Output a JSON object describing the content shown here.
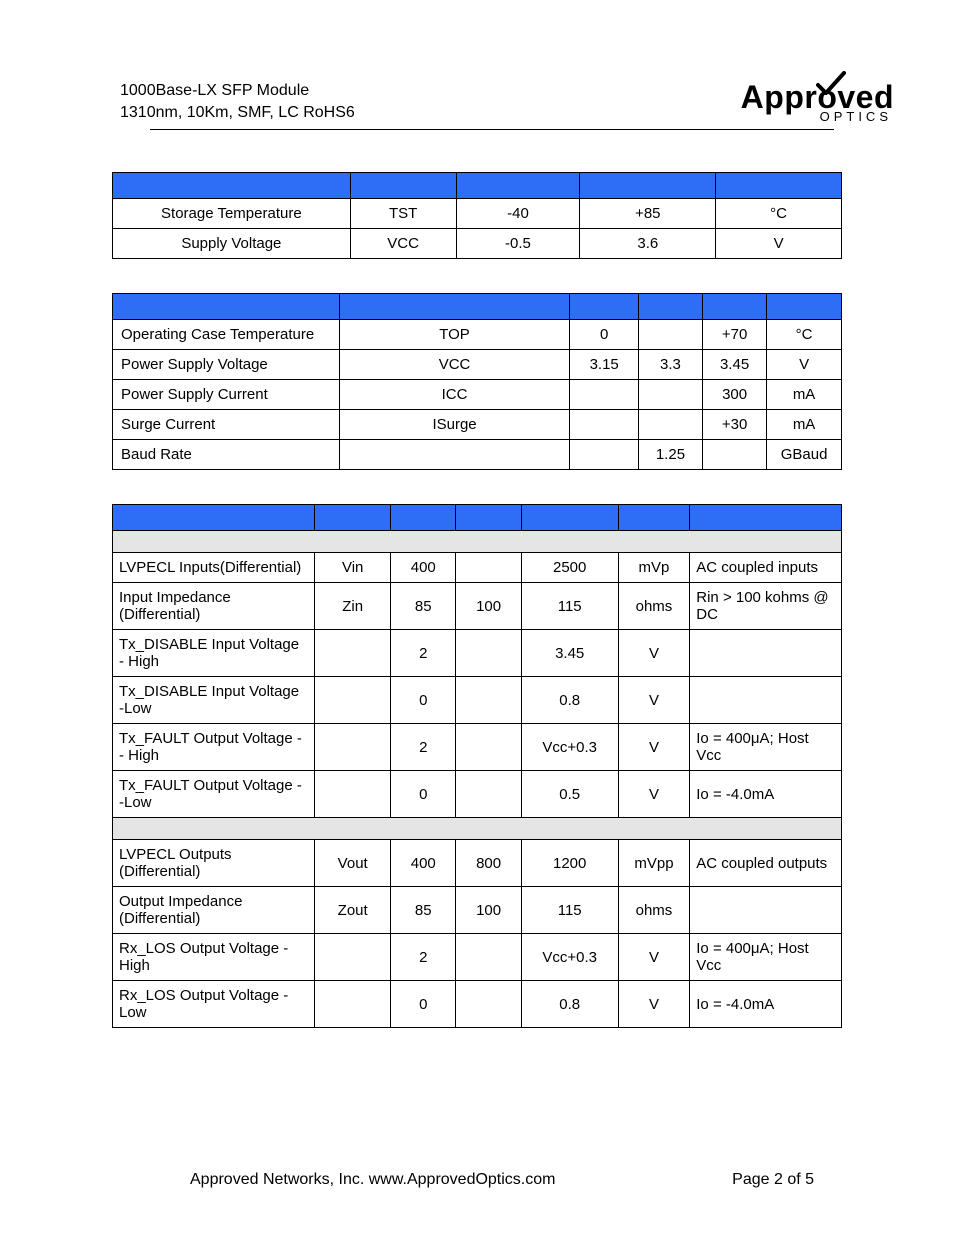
{
  "header": {
    "line1": "1000Base-LX SFP Module",
    "line2": "1310nm, 10Km, SMF, LC RoHS6"
  },
  "logo": {
    "main": "Approved",
    "sub": "OPTICS"
  },
  "table1": {
    "header_bg": "#2e6df6",
    "rows": [
      {
        "param": "Storage Temperature",
        "sym": "TST",
        "min": "-40",
        "max": "+85",
        "unit": "°C"
      },
      {
        "param": "Supply Voltage",
        "sym": "VCC",
        "min": "-0.5",
        "max": "3.6",
        "unit": "V"
      }
    ]
  },
  "table2": {
    "header_bg": "#2e6df6",
    "rows": [
      {
        "param": "Operating Case Temperature",
        "sym": "TOP",
        "min": "0",
        "typ": "",
        "max": "+70",
        "unit": "°C"
      },
      {
        "param": "Power Supply Voltage",
        "sym": "VCC",
        "min": "3.15",
        "typ": "3.3",
        "max": "3.45",
        "unit": "V"
      },
      {
        "param": "Power Supply Current",
        "sym": "ICC",
        "min": "",
        "typ": "",
        "max": "300",
        "unit": "mA"
      },
      {
        "param": "Surge Current",
        "sym": "ISurge",
        "min": "",
        "typ": "",
        "max": "+30",
        "unit": "mA"
      },
      {
        "param": "Baud Rate",
        "sym": "",
        "min": "",
        "typ": "1.25",
        "max": "",
        "unit": "GBaud"
      }
    ]
  },
  "table3": {
    "header_bg": "#2e6df6",
    "section_bg": "#e5e5e5",
    "tx_rows": [
      {
        "param": "LVPECL Inputs(Differential)",
        "sym": "Vin",
        "min": "400",
        "typ": "",
        "max": "2500",
        "unit": "mVp",
        "note": "AC coupled inputs"
      },
      {
        "param": "Input Impedance (Differential)",
        "sym": "Zin",
        "min": "85",
        "typ": "100",
        "max": "115",
        "unit": "ohms",
        "note": "Rin > 100 kohms @ DC"
      },
      {
        "param": "Tx_DISABLE Input Voltage - High",
        "sym": "",
        "min": "2",
        "typ": "",
        "max": "3.45",
        "unit": "V",
        "note": ""
      },
      {
        "param": "Tx_DISABLE Input Voltage -Low",
        "sym": "",
        "min": "0",
        "typ": "",
        "max": "0.8",
        "unit": "V",
        "note": ""
      },
      {
        "param": "Tx_FAULT Output Voltage -- High",
        "sym": "",
        "min": "2",
        "typ": "",
        "max": "Vcc+0.3",
        "unit": "V",
        "note": "Io = 400μA; Host Vcc"
      },
      {
        "param": "Tx_FAULT Output Voltage --Low",
        "sym": "",
        "min": "0",
        "typ": "",
        "max": "0.5",
        "unit": "V",
        "note": "Io = -4.0mA"
      }
    ],
    "rx_rows": [
      {
        "param": "LVPECL Outputs (Differential)",
        "sym": "Vout",
        "min": "400",
        "typ": "800",
        "max": "1200",
        "unit": "mVpp",
        "note": "AC coupled outputs"
      },
      {
        "param": "Output Impedance (Differential)",
        "sym": "Zout",
        "min": "85",
        "typ": "100",
        "max": "115",
        "unit": "ohms",
        "note": ""
      },
      {
        "param": "Rx_LOS Output Voltage - High",
        "sym": "",
        "min": "2",
        "typ": "",
        "max": "Vcc+0.3",
        "unit": "V",
        "note": "Io = 400μA; Host Vcc"
      },
      {
        "param": "Rx_LOS Output Voltage -Low",
        "sym": "",
        "min": "0",
        "typ": "",
        "max": "0.8",
        "unit": "V",
        "note": "Io = -4.0mA"
      }
    ]
  },
  "footer": {
    "left": "Approved Networks, Inc.  www.ApprovedOptics.com",
    "right": "Page 2 of 5"
  }
}
